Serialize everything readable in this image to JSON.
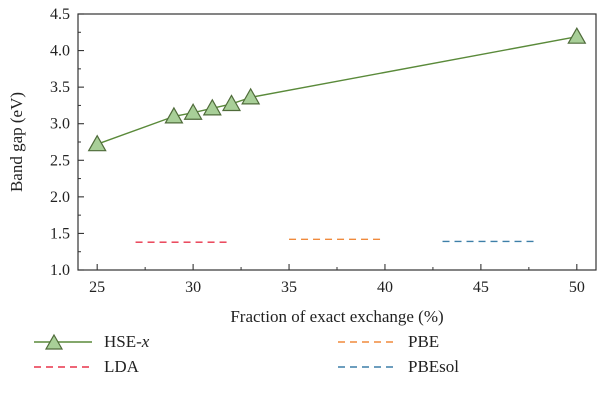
{
  "chart_data": {
    "type": "line",
    "xlabel": "Fraction of exact exchange (%)",
    "ylabel": "Band gap (eV)",
    "xlim": [
      24,
      51
    ],
    "ylim": [
      1.0,
      4.5
    ],
    "xticks": [
      25,
      30,
      35,
      40,
      45,
      50
    ],
    "yticks": [
      1.0,
      1.5,
      2.0,
      2.5,
      3.0,
      3.5,
      4.0,
      4.5
    ],
    "xtick_labels": [
      "25",
      "30",
      "35",
      "40",
      "45",
      "50"
    ],
    "ytick_labels": [
      "1.0",
      "1.5",
      "2.0",
      "2.5",
      "3.0",
      "3.5",
      "4.0",
      "4.5"
    ],
    "grid": false,
    "legend_position": "below",
    "series": [
      {
        "name": "HSE-x",
        "name_main": "HSE-",
        "name_italic": "x",
        "style": "solid-triangle",
        "color": "#5a8a3a",
        "marker_fill": "#a8cf98",
        "x": [
          25,
          29,
          30,
          31,
          32,
          33,
          50
        ],
        "y": [
          2.72,
          3.1,
          3.15,
          3.21,
          3.27,
          3.36,
          4.19
        ]
      },
      {
        "name": "LDA",
        "style": "dashed",
        "color": "#e8334a",
        "x": [
          27,
          32
        ],
        "y": [
          1.38,
          1.38
        ]
      },
      {
        "name": "PBE",
        "style": "dashed",
        "color": "#f08a3c",
        "x": [
          35,
          40
        ],
        "y": [
          1.42,
          1.42
        ]
      },
      {
        "name": "PBEsol",
        "style": "dashed",
        "color": "#3d7fa8",
        "x": [
          43,
          48
        ],
        "y": [
          1.39,
          1.39
        ]
      }
    ]
  }
}
